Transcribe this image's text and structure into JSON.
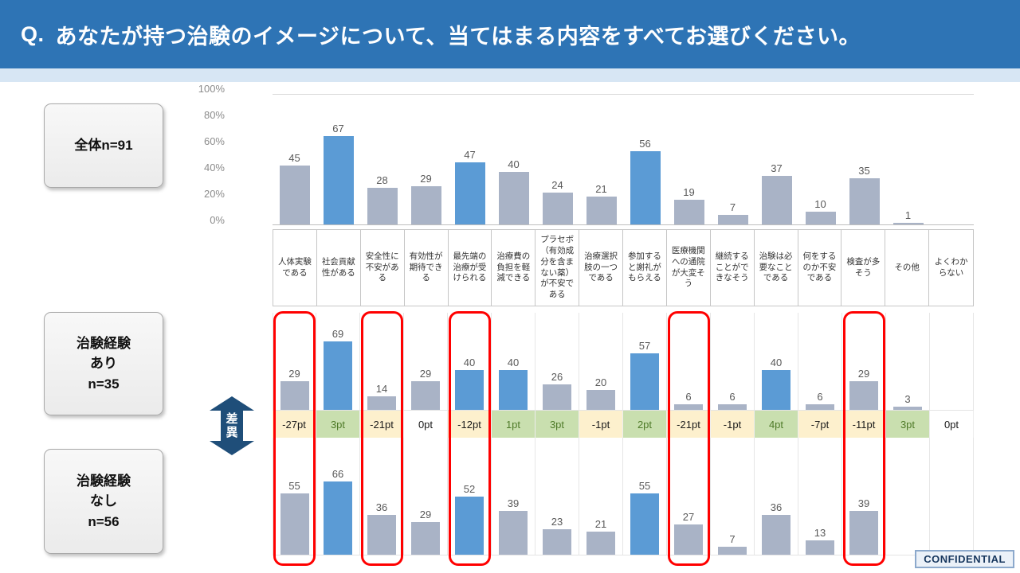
{
  "title": {
    "prefix": "Q.",
    "text": "あなたが持つ治験のイメージについて、当てはまる内容をすべてお選びください。"
  },
  "confidential_label": "CONFIDENTIAL",
  "group_boxes": {
    "overall": "全体n=91",
    "experienced": "治験経験\nあり\nn=35",
    "inexperienced": "治験経験\nなし\nn=56"
  },
  "diff_arrow_label": "差\n異",
  "colors": {
    "title_bar": "#2E74B5",
    "title_accent": "#D7E6F4",
    "bar_gray": "#A9B3C6",
    "bar_blue": "#5B9BD5",
    "diff_negative_bg": "#FDF0CD",
    "diff_positive_bg": "#C9DFAF",
    "diff_positive_text": "#4E7A28",
    "red_highlight": "#FF0000"
  },
  "chart_data": {
    "type": "bar",
    "title": "Q. あなたが持つ治験のイメージについて、当てはまる内容をすべてお選びください。",
    "categories": [
      "人体実験である",
      "社会貢献性がある",
      "安全性に不安がある",
      "有効性が期待できる",
      "最先端の治療が受けられる",
      "治療費の負担を軽減できる",
      "プラセボ（有効成分を含まない薬）が不安である",
      "治療選択肢の一つである",
      "参加すると謝礼がもらえる",
      "医療機関への通院が大変そう",
      "継続することができなそう",
      "治験は必要なことである",
      "何をするのか不安である",
      "検査が多そう",
      "その他",
      "よくわからない"
    ],
    "y_axis_ticks": [
      "100%",
      "80%",
      "60%",
      "40%",
      "20%",
      "0%"
    ],
    "y_axis_range": [
      0,
      100
    ],
    "unit": "%",
    "series": [
      {
        "name": "全体n=91",
        "values": [
          45,
          67,
          28,
          29,
          47,
          40,
          24,
          21,
          56,
          19,
          7,
          37,
          10,
          35,
          1,
          0
        ],
        "blue_indices": [
          1,
          4,
          8
        ]
      },
      {
        "name": "治験経験あり n=35",
        "values": [
          29,
          69,
          14,
          29,
          40,
          40,
          26,
          20,
          57,
          6,
          6,
          40,
          6,
          29,
          3,
          0
        ],
        "blue_indices": [
          1,
          4,
          5,
          8,
          11
        ]
      },
      {
        "name": "治験経験なし n=56",
        "values": [
          55,
          66,
          36,
          29,
          52,
          39,
          23,
          21,
          55,
          27,
          7,
          36,
          13,
          39,
          0,
          0
        ],
        "blue_indices": [
          1,
          4,
          8
        ]
      }
    ],
    "difference_row": {
      "label": "差異",
      "values": [
        "-27pt",
        "3pt",
        "-21pt",
        "0pt",
        "-12pt",
        "1pt",
        "3pt",
        "-1pt",
        "2pt",
        "-21pt",
        "-1pt",
        "4pt",
        "-7pt",
        "-11pt",
        "3pt",
        "0pt"
      ]
    },
    "red_highlight_category_indices": [
      0,
      2,
      4,
      9,
      13
    ]
  }
}
